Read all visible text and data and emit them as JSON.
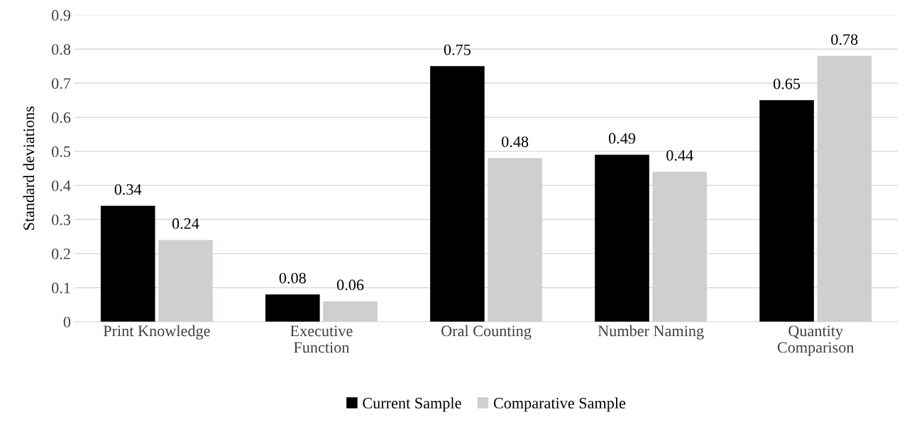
{
  "chart_data": {
    "type": "bar",
    "ylabel": "Standard deviations",
    "categories": [
      "Print Knowledge",
      "Executive\nFunction",
      "Oral Counting",
      "Number Naming",
      "Quantity\nComparison"
    ],
    "series": [
      {
        "name": "Current Sample",
        "color": "#000000",
        "values": [
          0.34,
          0.08,
          0.75,
          0.49,
          0.65
        ]
      },
      {
        "name": "Comparative Sample",
        "color": "#d0cece",
        "values": [
          0.24,
          0.06,
          0.48,
          0.44,
          0.78
        ]
      }
    ],
    "ylim": [
      0,
      0.9
    ],
    "yticks": [
      0,
      0.1,
      0.2,
      0.3,
      0.4,
      0.5,
      0.6,
      0.7,
      0.8,
      0.9
    ],
    "grid": "y",
    "legend": "bottom",
    "data_labels": true
  }
}
